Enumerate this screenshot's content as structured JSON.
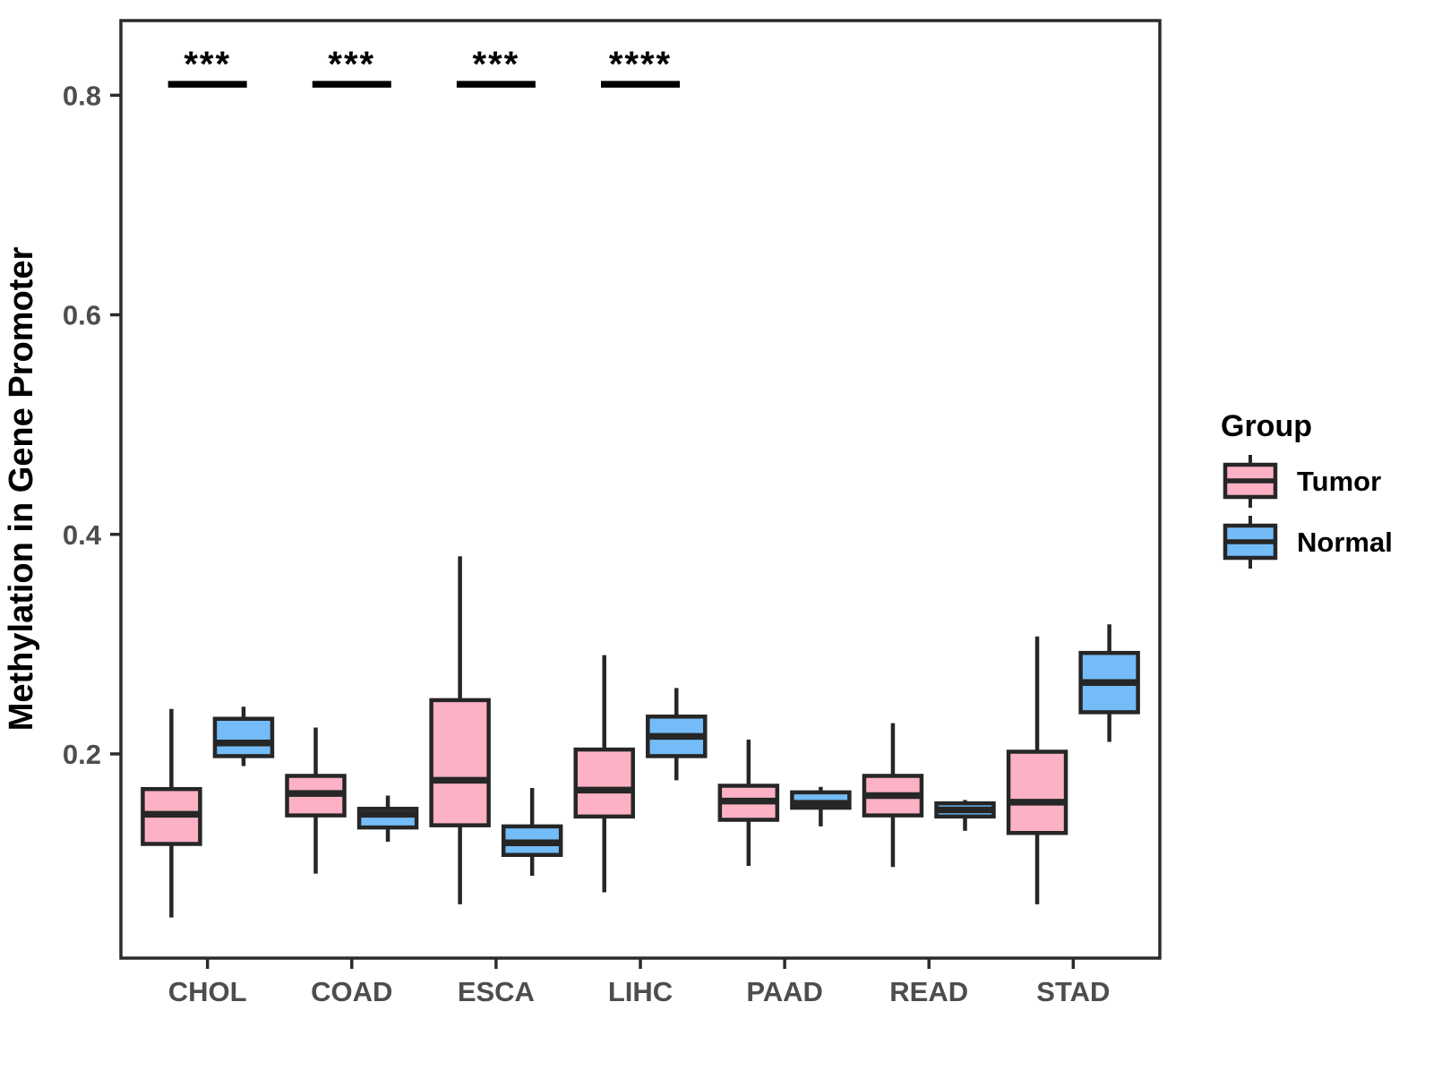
{
  "figure": {
    "background": "#ffffff",
    "panel_border_color": "#2b2b2b",
    "box_stroke_color": "#262626",
    "tick_label_color": "#4d4d4d"
  },
  "legend": {
    "title": "Group"
  },
  "chart_data": {
    "type": "boxplot",
    "title": "",
    "xlabel": "",
    "ylabel": "Methylation in Gene Promoter",
    "ylim": [
      0.014,
      0.868
    ],
    "yticks": [
      0.2,
      0.4,
      0.6,
      0.8
    ],
    "ytick_labels": [
      "0.2",
      "0.4",
      "0.6",
      "0.8"
    ],
    "grid": "off",
    "legend_position": "right",
    "categories": [
      "CHOL",
      "COAD",
      "ESCA",
      "LIHC",
      "PAAD",
      "READ",
      "STAD"
    ],
    "box_stats_order": [
      "whisker_low",
      "q1",
      "median",
      "q3",
      "whisker_high"
    ],
    "series": [
      {
        "name": "Tumor",
        "color": "#FCB2C4",
        "boxes": [
          [
            0.051,
            0.118,
            0.145,
            0.168,
            0.241
          ],
          [
            0.091,
            0.144,
            0.164,
            0.18,
            0.224
          ],
          [
            0.063,
            0.135,
            0.176,
            0.249,
            0.38
          ],
          [
            0.074,
            0.143,
            0.167,
            0.204,
            0.29
          ],
          [
            0.098,
            0.14,
            0.157,
            0.171,
            0.213
          ],
          [
            0.097,
            0.144,
            0.162,
            0.18,
            0.228
          ],
          [
            0.063,
            0.128,
            0.156,
            0.202,
            0.307
          ]
        ]
      },
      {
        "name": "Normal",
        "color": "#74BCF7",
        "boxes": [
          [
            0.189,
            0.198,
            0.21,
            0.232,
            0.243
          ],
          [
            0.12,
            0.133,
            0.145,
            0.15,
            0.162
          ],
          [
            0.089,
            0.108,
            0.119,
            0.134,
            0.169
          ],
          [
            0.176,
            0.198,
            0.216,
            0.234,
            0.26
          ],
          [
            0.134,
            0.151,
            0.155,
            0.165,
            0.17
          ],
          [
            0.13,
            0.143,
            0.149,
            0.155,
            0.158
          ],
          [
            0.211,
            0.238,
            0.265,
            0.292,
            0.318
          ]
        ]
      }
    ],
    "significance": [
      {
        "category": "CHOL",
        "stars": "***",
        "bar_value": 0.81
      },
      {
        "category": "COAD",
        "stars": "***",
        "bar_value": 0.81
      },
      {
        "category": "ESCA",
        "stars": "***",
        "bar_value": 0.81
      },
      {
        "category": "LIHC",
        "stars": "****",
        "bar_value": 0.81
      }
    ]
  }
}
